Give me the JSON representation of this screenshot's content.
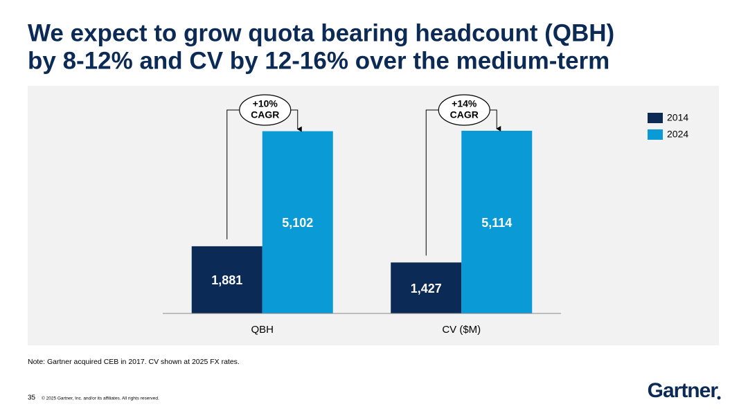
{
  "chart_data": {
    "type": "bar",
    "title": [
      "We expect to grow quota bearing headcount (QBH)",
      "by 8-12% and CV by 12-16% over the medium-term"
    ],
    "categories": [
      "QBH",
      "CV ($M)"
    ],
    "series": [
      {
        "name": "2014",
        "color": "#0b2a55",
        "values": [
          1881,
          1427
        ],
        "value_labels": [
          "1,881",
          "1,427"
        ]
      },
      {
        "name": "2024",
        "color": "#0a9ad6",
        "values": [
          5102,
          5114
        ],
        "value_labels": [
          "5,102",
          "5,114"
        ]
      }
    ],
    "annotations": [
      [
        "+10%",
        "CAGR"
      ],
      [
        "+14%",
        "CAGR"
      ]
    ],
    "legend": "top-right"
  },
  "footer": {
    "note": "Note: Gartner acquired CEB in 2017. CV shown at 2025 FX rates.",
    "page_number": "35",
    "copyright": "© 2025 Gartner, Inc. and/or its affiliates. All rights reserved.",
    "logo": "Gartner"
  }
}
